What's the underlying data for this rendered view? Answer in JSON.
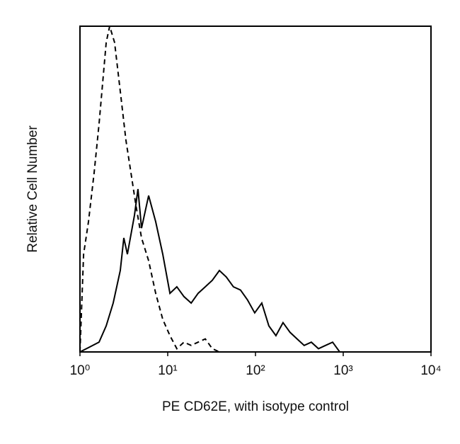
{
  "chart_data": {
    "type": "histogram-line",
    "xlabel": "PE CD62E, with isotype control",
    "ylabel": "Relative Cell Number",
    "xscale": "log",
    "xlim": [
      1,
      10000
    ],
    "ylim": [
      0,
      100
    ],
    "xticks": [
      {
        "value": 1,
        "label": "10⁰"
      },
      {
        "value": 10,
        "label": "10¹"
      },
      {
        "value": 100,
        "label": "10²"
      },
      {
        "value": 1000,
        "label": "10³"
      },
      {
        "value": 10000,
        "label": "10⁴"
      }
    ],
    "series": [
      {
        "color": "#000000",
        "dashed": false,
        "x": [
          1,
          1.65,
          1.99,
          2.39,
          2.88,
          3.16,
          3.47,
          4.18,
          4.58,
          5.03,
          6.06,
          7.29,
          8.78,
          10.6,
          12.7,
          15.3,
          18.5,
          22.2,
          26.8,
          32.2,
          38.8,
          46.5,
          56,
          67.5,
          81,
          98,
          118,
          142,
          171,
          206,
          248,
          298,
          359,
          433,
          522,
          628,
          757,
          912
        ],
        "values": [
          0,
          3,
          8,
          15,
          25,
          35,
          30,
          42,
          50,
          38,
          48,
          40,
          30,
          18,
          20,
          17,
          15,
          18,
          20,
          22,
          25,
          23,
          20,
          19,
          16,
          12,
          15,
          8,
          5,
          9,
          6,
          4,
          2,
          3,
          1,
          2,
          3,
          0
        ]
      },
      {
        "color": "#000000",
        "dashed": true,
        "x": [
          1,
          1.1,
          1.25,
          1.45,
          1.65,
          1.99,
          2.18,
          2.48,
          2.88,
          3.34,
          3.81,
          4.34,
          5.03,
          6.06,
          7.29,
          8.78,
          10.6,
          12.7,
          15.3,
          18.5,
          22.2,
          26.8,
          32.2,
          38.8
        ],
        "values": [
          0,
          30,
          40,
          55,
          70,
          95,
          100,
          95,
          80,
          65,
          55,
          45,
          35,
          28,
          18,
          10,
          5,
          1,
          3,
          2,
          3,
          4,
          1,
          0
        ]
      }
    ]
  }
}
